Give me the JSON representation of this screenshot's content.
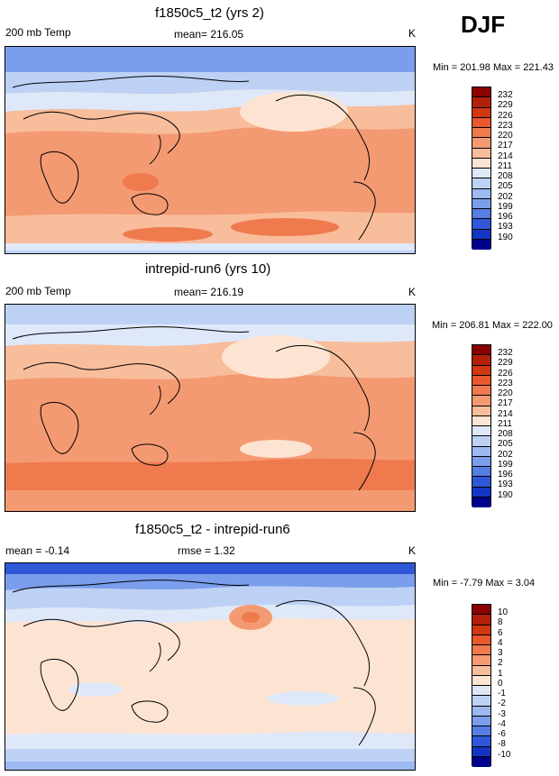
{
  "season": "DJF",
  "units": "K",
  "panels": [
    {
      "title": "f1850c5_t2 (yrs 2)",
      "left_label": "200 mb Temp",
      "center_label": "mean= 216.05",
      "units": "K",
      "min_max": "Min = 201.98 Max = 221.43",
      "colorbar": {
        "labels": [
          "232",
          "229",
          "226",
          "223",
          "220",
          "217",
          "214",
          "211",
          "208",
          "205",
          "202",
          "199",
          "196",
          "193",
          "190"
        ],
        "colors": [
          "#8b0000",
          "#b3200a",
          "#d13812",
          "#e8582c",
          "#ef7a4e",
          "#f49a72",
          "#f8bd9b",
          "#fde4d2",
          "#dfe8f8",
          "#bdd1f5",
          "#9cb9f1",
          "#7a9eec",
          "#567ee3",
          "#2f58d8",
          "#1236c4",
          "#00008b"
        ]
      }
    },
    {
      "title": "intrepid-run6 (yrs 10)",
      "left_label": "200 mb Temp",
      "center_label": "mean= 216.19",
      "units": "K",
      "min_max": "Min = 206.81 Max = 222.00",
      "colorbar": {
        "labels": [
          "232",
          "229",
          "226",
          "223",
          "220",
          "217",
          "214",
          "211",
          "208",
          "205",
          "202",
          "199",
          "196",
          "193",
          "190"
        ],
        "colors": [
          "#8b0000",
          "#b3200a",
          "#d13812",
          "#e8582c",
          "#ef7a4e",
          "#f49a72",
          "#f8bd9b",
          "#fde4d2",
          "#dfe8f8",
          "#bdd1f5",
          "#9cb9f1",
          "#7a9eec",
          "#567ee3",
          "#2f58d8",
          "#1236c4",
          "#00008b"
        ]
      }
    },
    {
      "title": "f1850c5_t2 - intrepid-run6",
      "left_label": "mean =  -0.14",
      "center_label": "rmse =   1.32",
      "units": "K",
      "min_max": "Min =  -7.79 Max =   3.04",
      "colorbar": {
        "labels": [
          "10",
          "8",
          "6",
          "4",
          "3",
          "2",
          "1",
          "0",
          "-1",
          "-2",
          "-3",
          "-4",
          "-6",
          "-8",
          "-10"
        ],
        "colors": [
          "#8b0000",
          "#b3200a",
          "#d13812",
          "#e8582c",
          "#ef7a4e",
          "#f49a72",
          "#f8bd9b",
          "#fde4d2",
          "#dfe8f8",
          "#bdd1f5",
          "#9cb9f1",
          "#7a9eec",
          "#567ee3",
          "#2f58d8",
          "#1236c4",
          "#00008b"
        ]
      }
    }
  ]
}
